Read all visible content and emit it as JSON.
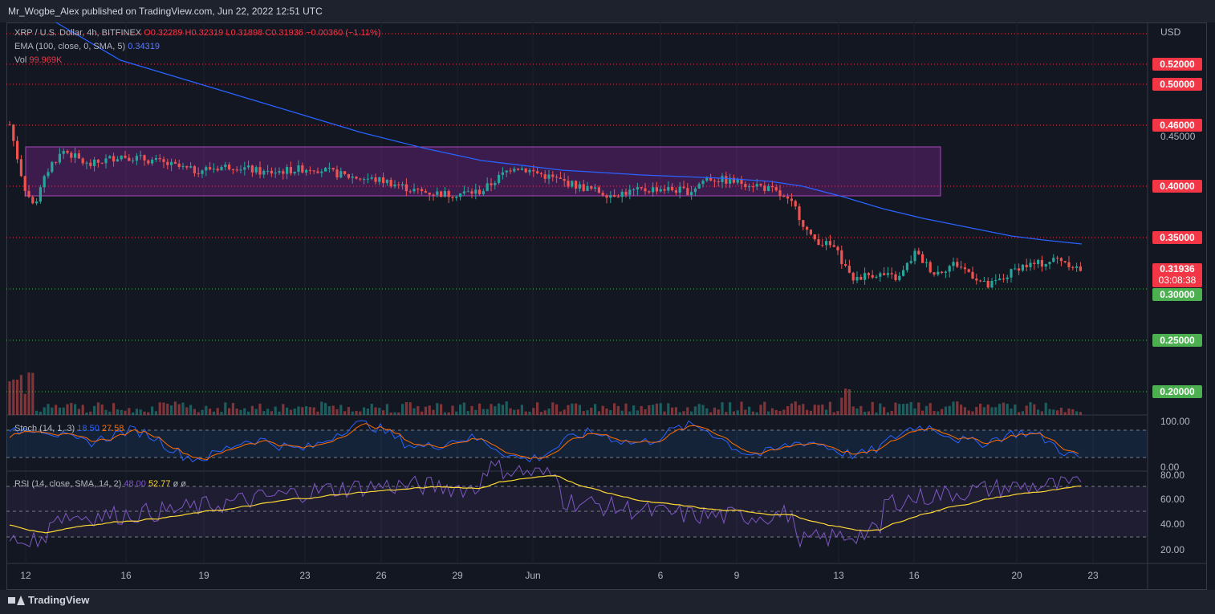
{
  "header": {
    "publish_line": "Mr_Wogbe_Alex published on TradingView.com, Jun 22, 2022 12:51 UTC"
  },
  "main_legend": {
    "symbol": "XRP / U.S. Dollar, 4h, BITFINEX",
    "ohlc": "O0.32289 H0.32319 L0.31898 C0.31936 −0.00360 (−1.11%)",
    "ema_label": "EMA (100, close, 0, SMA, 5)",
    "ema_value": "0.34319",
    "vol_label": "Vol",
    "vol_value": "99.969K"
  },
  "stoch_legend": {
    "label": "Stoch (14, 1, 3)",
    "k": "18.50",
    "d": "27.58"
  },
  "rsi_legend": {
    "label": "RSI (14, close, SMA, 14, 2)",
    "rsi": "48.00",
    "ma": "52.77",
    "extra": "ø ø"
  },
  "price_axis": {
    "currency": "USD",
    "labels": [
      "0.45000"
    ],
    "red_tags": [
      "0.52000",
      "0.50000",
      "0.46000",
      "0.40000",
      "0.35000"
    ],
    "green_tags": [
      "0.30000",
      "0.25000",
      "0.20000"
    ],
    "last_price": "0.31936",
    "countdown": "03:08:38"
  },
  "stoch_axis": [
    "100.00",
    "0.00"
  ],
  "rsi_axis": [
    "80.00",
    "60.00",
    "40.00",
    "20.00"
  ],
  "time_axis": [
    "12",
    "16",
    "19",
    "23",
    "26",
    "29",
    "Jun",
    "6",
    "9",
    "13",
    "16",
    "20",
    "23"
  ],
  "footer": {
    "brand": "TradingView"
  },
  "colors": {
    "bg": "#131722",
    "up": "#26a69a",
    "down": "#ef5350",
    "ema": "#2962ff",
    "zone": "#9c27b0",
    "stoch_k": "#2962ff",
    "stoch_d": "#ff6d00",
    "rsi": "#7e57c2",
    "rsi_ma": "#fdd835"
  }
}
